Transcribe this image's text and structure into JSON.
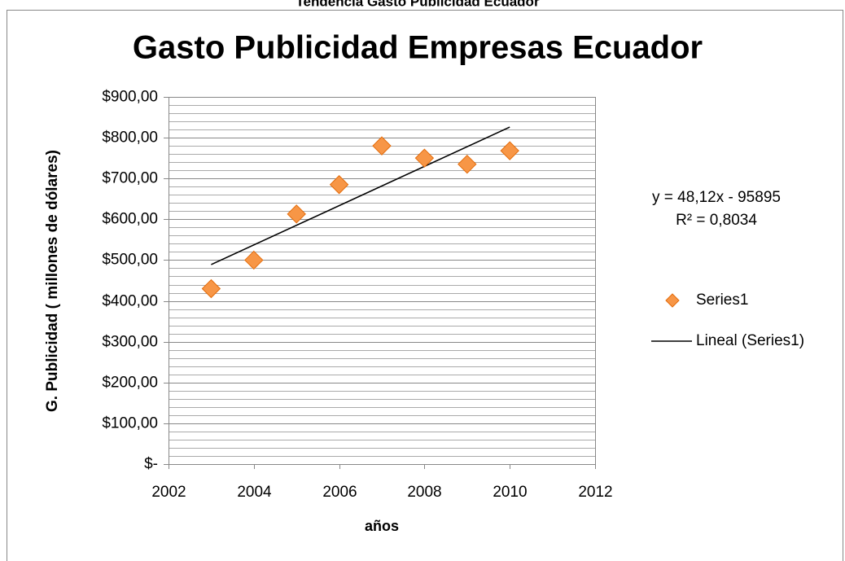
{
  "chart_data": {
    "type": "scatter",
    "header": "Tendencia Gasto Publicidad Ecuador",
    "title": "Gasto Publicidad Empresas Ecuador",
    "x_label": "años",
    "y_label": "G. Publicidad ( millones  de dólares)",
    "series": [
      {
        "name": "Series1",
        "color": "#f79646",
        "x": [
          2003,
          2004,
          2005,
          2006,
          2007,
          2008,
          2009,
          2010
        ],
        "values": [
          430,
          500,
          613,
          685,
          780,
          750,
          735,
          768
        ]
      }
    ],
    "trendline": {
      "name": "Lineal (Series1)",
      "color": "#000000",
      "x": [
        2003,
        2010
      ],
      "values": [
        489,
        826
      ],
      "equation": "y = 48,12x - 95895",
      "r_squared": "R² = 0,8034"
    },
    "xlim": [
      2002,
      2012
    ],
    "xticks": [
      2002,
      2004,
      2006,
      2008,
      2010,
      2012
    ],
    "ylim": [
      0,
      900
    ],
    "yticks": [
      {
        "value": 0,
        "label": "$-"
      },
      {
        "value": 100,
        "label": "$100,00"
      },
      {
        "value": 200,
        "label": "$200,00"
      },
      {
        "value": 300,
        "label": "$300,00"
      },
      {
        "value": 400,
        "label": "$400,00"
      },
      {
        "value": 500,
        "label": "$500,00"
      },
      {
        "value": 600,
        "label": "$600,00"
      },
      {
        "value": 700,
        "label": "$700,00"
      },
      {
        "value": 800,
        "label": "$800,00"
      },
      {
        "value": 900,
        "label": "$900,00"
      }
    ],
    "y_minor_ticks": [
      20,
      40,
      60,
      80,
      120,
      140,
      160,
      180,
      220,
      240,
      260,
      280,
      320,
      340,
      360,
      380,
      420,
      440,
      460,
      480,
      520,
      540,
      560,
      580,
      620,
      640,
      660,
      680,
      720,
      740,
      760,
      780,
      820,
      840,
      860,
      880
    ],
    "grid": true,
    "legend": "right"
  }
}
